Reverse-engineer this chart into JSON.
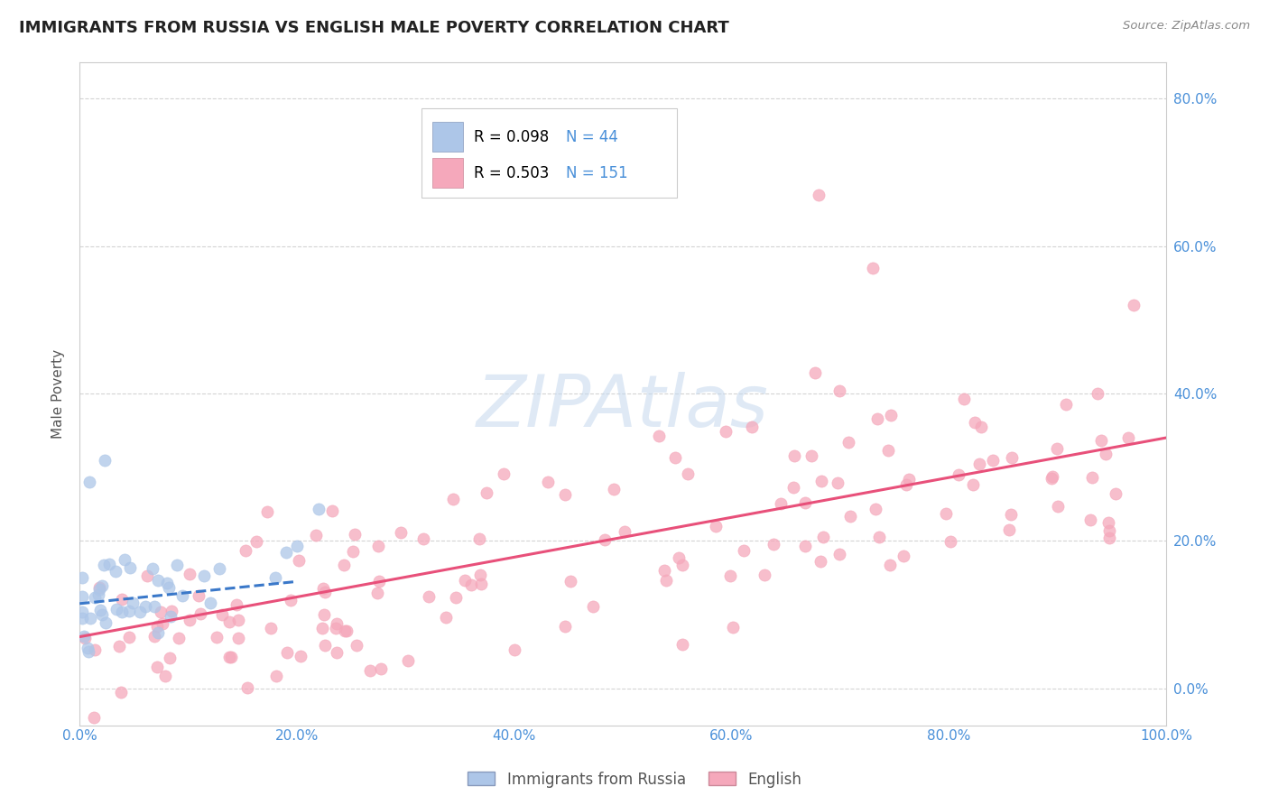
{
  "title": "IMMIGRANTS FROM RUSSIA VS ENGLISH MALE POVERTY CORRELATION CHART",
  "source_text": "Source: ZipAtlas.com",
  "ylabel": "Male Poverty",
  "watermark": "ZIPAtlas",
  "legend_blue_r": "R = 0.098",
  "legend_blue_n": "N = 44",
  "legend_pink_r": "R = 0.503",
  "legend_pink_n": "N = 151",
  "legend_label_blue": "Immigrants from Russia",
  "legend_label_pink": "English",
  "blue_color": "#adc6e8",
  "pink_color": "#f5a8bb",
  "blue_line_color": "#3a78c9",
  "pink_line_color": "#e8507a",
  "title_color": "#222222",
  "axis_label_color": "#555555",
  "tick_color": "#4a90d9",
  "grid_color": "#d0d0d0",
  "background_color": "#ffffff",
  "xlim": [
    0.0,
    1.0
  ],
  "ylim": [
    -0.05,
    0.85
  ],
  "xticks": [
    0.0,
    0.2,
    0.4,
    0.6,
    0.8,
    1.0
  ],
  "yticks": [
    0.0,
    0.2,
    0.4,
    0.6,
    0.8
  ],
  "xticklabels": [
    "0.0%",
    "20.0%",
    "40.0%",
    "60.0%",
    "80.0%",
    "100.0%"
  ],
  "yticklabels": [
    "0.0%",
    "20.0%",
    "40.0%",
    "60.0%",
    "80.0%"
  ],
  "blue_trend_x": [
    0.0,
    0.2
  ],
  "blue_trend_y": [
    0.115,
    0.145
  ],
  "pink_trend_x": [
    0.0,
    1.0
  ],
  "pink_trend_y": [
    0.07,
    0.34
  ]
}
